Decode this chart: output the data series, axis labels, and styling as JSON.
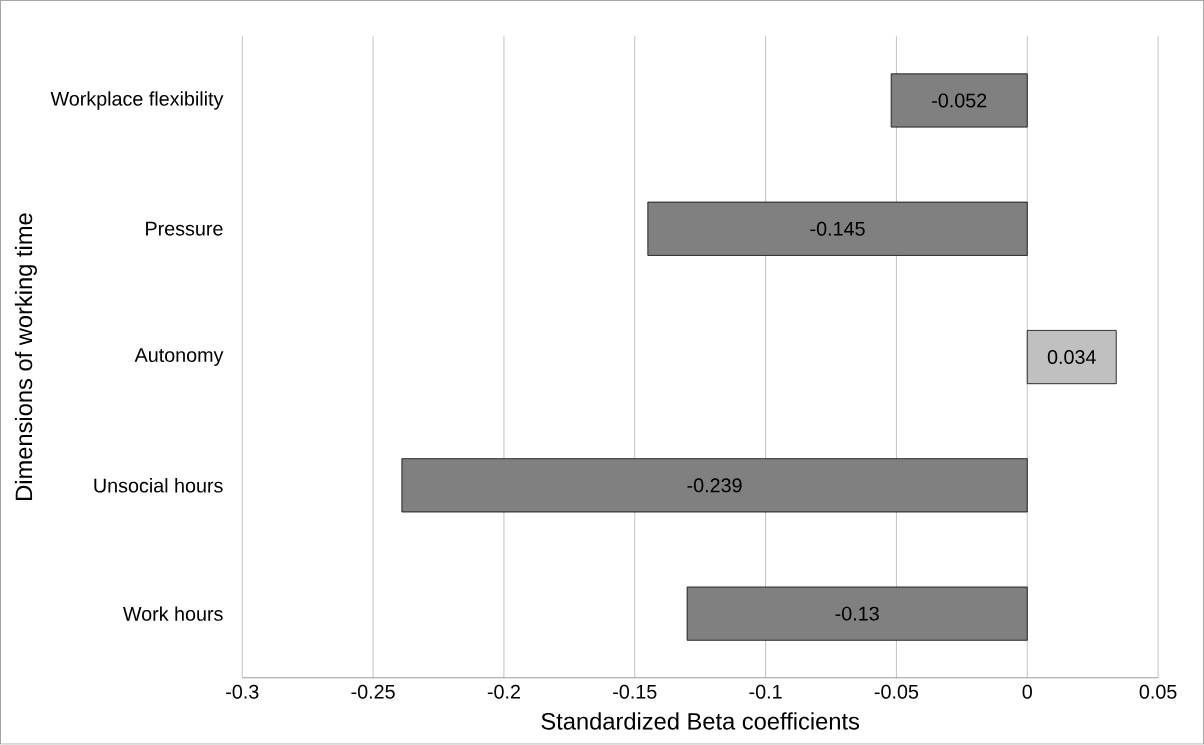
{
  "chart_data": {
    "type": "bar",
    "orientation": "horizontal",
    "categories": [
      "Workplace flexibility",
      "Pressure",
      "Autonomy",
      "Unsocial hours",
      "Work hours"
    ],
    "values": [
      -0.052,
      -0.145,
      0.034,
      -0.239,
      -0.13
    ],
    "colors": [
      "#808080",
      "#808080",
      "#c0c0c0",
      "#808080",
      "#808080"
    ],
    "data_labels": true,
    "xlim": [
      -0.3,
      0.05
    ],
    "xticks": [
      -0.3,
      -0.25,
      -0.2,
      -0.15,
      -0.1,
      -0.05,
      0,
      0.05
    ],
    "grid": "x",
    "xlabel": "Standardized Beta coefficients",
    "ylabel": "Dimensions of working time"
  }
}
